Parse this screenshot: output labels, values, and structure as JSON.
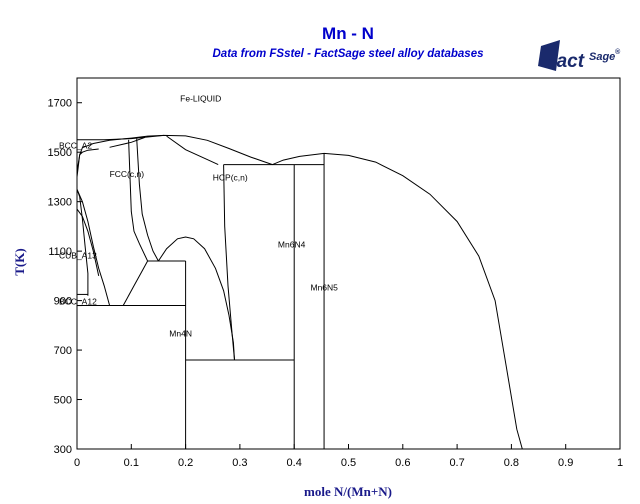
{
  "header": {
    "title": "Mn - N",
    "subtitle": "Data from FSstel - FactSage steel alloy databases"
  },
  "logo": {
    "brand": "Fact",
    "suffix": "Sage",
    "mark": "®",
    "icon": "factsage-logo"
  },
  "chart_data": {
    "type": "phase-diagram",
    "title": "Mn - N",
    "subtitle": "Data from FSstel - FactSage steel alloy databases",
    "xlabel": "mole N/(Mn+N)",
    "ylabel": "T(K)",
    "xlim": [
      0,
      1
    ],
    "ylim": [
      300,
      1800
    ],
    "x_ticks": [
      "0",
      "0.1",
      "0.2",
      "0.3",
      "0.4",
      "0.5",
      "0.6",
      "0.7",
      "0.8",
      "0.9",
      "1"
    ],
    "y_ticks": [
      "300",
      "500",
      "700",
      "900",
      "1100",
      "1300",
      "1500",
      "1700"
    ],
    "grid": false,
    "legend": "none",
    "regions": [
      {
        "label": "Fe-LIQUID",
        "x": 0.19,
        "T": 1705
      },
      {
        "label": "BCC_A2",
        "x": 0.0,
        "T": 1515
      },
      {
        "label": "FCC(c,n)",
        "x": 0.06,
        "T": 1400
      },
      {
        "label": "HCP(c,n)",
        "x": 0.25,
        "T": 1385
      },
      {
        "label": "CUB_A13",
        "x": 0.0,
        "T": 1070
      },
      {
        "label": "BCC_A12",
        "x": 0.0,
        "T": 885
      },
      {
        "label": "Mn6N4",
        "x": 0.37,
        "T": 1115
      },
      {
        "label": "Mn6N5",
        "x": 0.43,
        "T": 940
      },
      {
        "label": "Mn4N",
        "x": 0.17,
        "T": 755
      }
    ],
    "boundaries": [
      {
        "name": "liquidus",
        "points": [
          [
            0,
            1400
          ],
          [
            0.005,
            1490
          ],
          [
            0.01,
            1518
          ],
          [
            0.03,
            1535
          ],
          [
            0.06,
            1548
          ],
          [
            0.1,
            1557
          ],
          [
            0.13,
            1565
          ],
          [
            0.16,
            1568
          ],
          [
            0.2,
            1566
          ],
          [
            0.24,
            1548
          ],
          [
            0.28,
            1515
          ],
          [
            0.32,
            1480
          ],
          [
            0.36,
            1450
          ]
        ]
      },
      {
        "name": "liquidus-n-rich",
        "points": [
          [
            0.36,
            1450
          ],
          [
            0.38,
            1468
          ],
          [
            0.41,
            1483
          ],
          [
            0.455,
            1495
          ],
          [
            0.5,
            1487
          ],
          [
            0.55,
            1460
          ],
          [
            0.6,
            1405
          ],
          [
            0.65,
            1330
          ],
          [
            0.7,
            1220
          ],
          [
            0.74,
            1080
          ],
          [
            0.77,
            900
          ],
          [
            0.79,
            640
          ],
          [
            0.81,
            380
          ],
          [
            0.82,
            300
          ]
        ]
      },
      {
        "name": "solidus-bcc",
        "points": [
          [
            0.0,
            1400
          ],
          [
            0.0,
            1550
          ],
          [
            0.05,
            1550
          ],
          [
            0.1,
            1555
          ],
          [
            0.16,
            1568
          ]
        ]
      },
      {
        "name": "bcc-fcc-inner",
        "points": [
          [
            0.0,
            1420
          ],
          [
            0.005,
            1490
          ],
          [
            0.01,
            1500
          ],
          [
            0.02,
            1508
          ],
          [
            0.04,
            1513
          ]
        ]
      },
      {
        "name": "bcc-fcc-outer",
        "points": [
          [
            0.06,
            1520
          ],
          [
            0.1,
            1540
          ],
          [
            0.125,
            1560
          ]
        ]
      },
      {
        "name": "fcc-hcp-left",
        "points": [
          [
            0.095,
            1550
          ],
          [
            0.1,
            1260
          ],
          [
            0.105,
            1180
          ],
          [
            0.115,
            1130
          ],
          [
            0.13,
            1060
          ]
        ]
      },
      {
        "name": "fcc-hcp-right",
        "points": [
          [
            0.11,
            1555
          ],
          [
            0.115,
            1370
          ],
          [
            0.12,
            1250
          ],
          [
            0.13,
            1165
          ],
          [
            0.14,
            1100
          ],
          [
            0.15,
            1060
          ]
        ]
      },
      {
        "name": "hcp-liquid-right",
        "points": [
          [
            0.165,
            1565
          ],
          [
            0.2,
            1510
          ],
          [
            0.24,
            1470
          ],
          [
            0.26,
            1450
          ]
        ]
      },
      {
        "name": "hcp-mn4n-left",
        "points": [
          [
            0.15,
            1060
          ],
          [
            0.165,
            1110
          ],
          [
            0.185,
            1150
          ],
          [
            0.2,
            1157
          ],
          [
            0.215,
            1150
          ],
          [
            0.235,
            1110
          ],
          [
            0.255,
            1030
          ],
          [
            0.27,
            940
          ],
          [
            0.28,
            840
          ],
          [
            0.288,
            730
          ],
          [
            0.29,
            660
          ]
        ]
      },
      {
        "name": "hcp-mn6n4-left",
        "points": [
          [
            0.27,
            1450
          ],
          [
            0.272,
            1200
          ],
          [
            0.278,
            960
          ],
          [
            0.285,
            780
          ],
          [
            0.29,
            660
          ]
        ]
      },
      {
        "name": "bcc-low",
        "points": [
          [
            0.0,
            1350
          ],
          [
            0.01,
            1300
          ],
          [
            0.02,
            1220
          ],
          [
            0.03,
            1120
          ],
          [
            0.04,
            1030
          ],
          [
            0.05,
            960
          ],
          [
            0.06,
            880
          ]
        ]
      },
      {
        "name": "cub-left",
        "points": [
          [
            0.0,
            1350
          ],
          [
            0.005,
            1320
          ],
          [
            0.01,
            1230
          ],
          [
            0.015,
            1120
          ],
          [
            0.02,
            1010
          ],
          [
            0.02,
            920
          ]
        ]
      },
      {
        "name": "cub-fcc-left",
        "points": [
          [
            0.0,
            1270
          ],
          [
            0.01,
            1240
          ],
          [
            0.02,
            1180
          ],
          [
            0.03,
            1100
          ],
          [
            0.04,
            1000
          ]
        ]
      },
      {
        "name": "fcc-eutectoid",
        "points": [
          [
            0.13,
            1060
          ],
          [
            0.12,
            1020
          ],
          [
            0.105,
            960
          ],
          [
            0.09,
            900
          ],
          [
            0.085,
            880
          ]
        ]
      },
      {
        "name": "mn-low",
        "points": [
          [
            0.0,
            600
          ],
          [
            0.0,
            880
          ]
        ]
      }
    ],
    "isotherms": [
      {
        "T": 1450,
        "x1": 0.27,
        "x2": 0.455
      },
      {
        "T": 1060,
        "x1": 0.13,
        "x2": 0.2
      },
      {
        "T": 880,
        "x1": 0.0,
        "x2": 0.2
      },
      {
        "T": 925,
        "x1": 0.0,
        "x2": 0.02
      },
      {
        "T": 660,
        "x1": 0.2,
        "x2": 0.4
      }
    ],
    "phase_lines": [
      {
        "x": 0.2,
        "T1": 300,
        "T2": 1060
      },
      {
        "x": 0.4,
        "T1": 300,
        "T2": 1450
      },
      {
        "x": 0.455,
        "T1": 300,
        "T2": 1495
      },
      {
        "x": 0.0,
        "T1": 300,
        "T2": 1400
      }
    ]
  }
}
